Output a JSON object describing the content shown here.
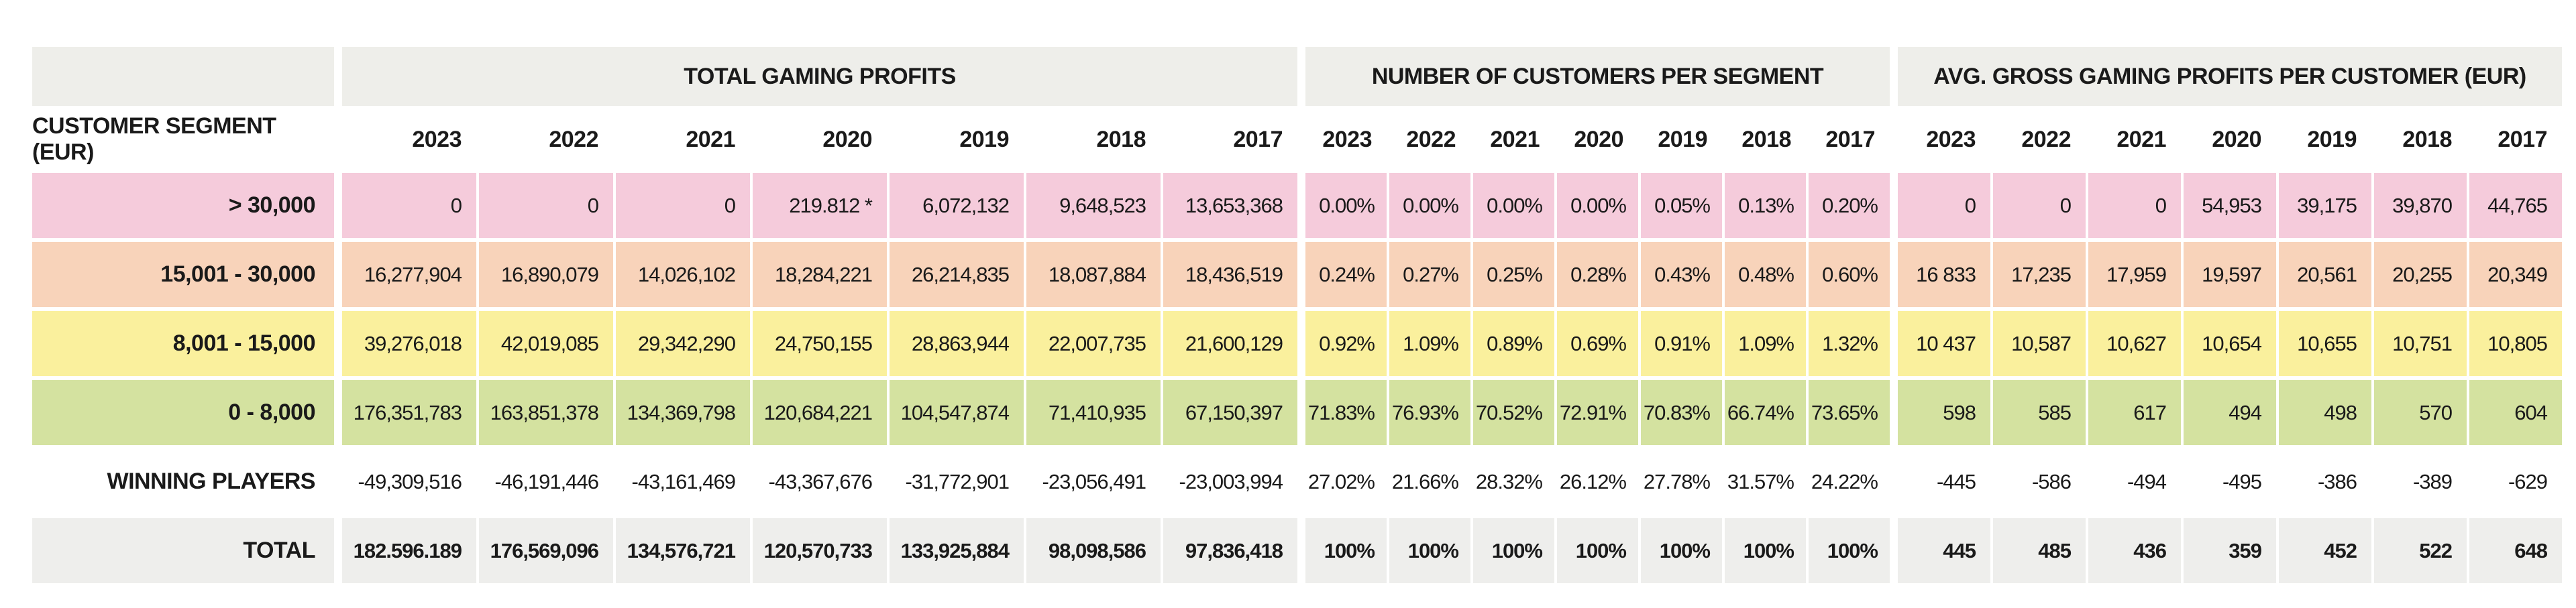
{
  "colors": {
    "header_box_bg": "#eeeeea",
    "row_pink": "#f5cbdb",
    "row_peach": "#f8d3ba",
    "row_yellow": "#faf09d",
    "row_green": "#d4e2a0",
    "row_white": "#ffffff",
    "row_total_gray": "#eeeeec",
    "text": "#1a1a1a"
  },
  "table": {
    "label_column_header": "CUSTOMER SEGMENT (EUR)",
    "sections": [
      {
        "key": "total-gaming-profits",
        "title": "TOTAL GAMING PROFITS",
        "years": [
          "2023",
          "2022",
          "2021",
          "2020",
          "2019",
          "2018",
          "2017"
        ]
      },
      {
        "key": "customers-per-segment",
        "title": "NUMBER OF CUSTOMERS PER SEGMENT",
        "years": [
          "2023",
          "2022",
          "2021",
          "2020",
          "2019",
          "2018",
          "2017"
        ]
      },
      {
        "key": "avg-gross-profits-per-customer",
        "title": "AVG. GROSS GAMING PROFITS PER CUSTOMER (EUR)",
        "years": [
          "2023",
          "2022",
          "2021",
          "2020",
          "2019",
          "2018",
          "2017"
        ]
      }
    ],
    "rows": [
      {
        "key": "over-30000",
        "label": "> 30,000",
        "color": "#f5cbdb",
        "emphasis": false,
        "gaming_profits": [
          "0",
          "0",
          "0",
          "219.812 *",
          "6,072,132",
          "9,648,523",
          "13,653,368"
        ],
        "customers_pct": [
          "0.00%",
          "0.00%",
          "0.00%",
          "0.00%",
          "0.05%",
          "0.13%",
          "0.20%"
        ],
        "avg_profits": [
          "0",
          "0",
          "0",
          "54,953",
          "39,175",
          "39,870",
          "44,765"
        ]
      },
      {
        "key": "15001-30000",
        "label": "15,001 - 30,000",
        "color": "#f8d3ba",
        "emphasis": false,
        "gaming_profits": [
          "16,277,904",
          "16,890,079",
          "14,026,102",
          "18,284,221",
          "26,214,835",
          "18,087,884",
          "18,436,519"
        ],
        "customers_pct": [
          "0.24%",
          "0.27%",
          "0.25%",
          "0.28%",
          "0.43%",
          "0.48%",
          "0.60%"
        ],
        "avg_profits": [
          "16 833",
          "17,235",
          "17,959",
          "19,597",
          "20,561",
          "20,255",
          "20,349"
        ]
      },
      {
        "key": "8001-15000",
        "label": "8,001 - 15,000",
        "color": "#faf09d",
        "emphasis": false,
        "gaming_profits": [
          "39,276,018",
          "42,019,085",
          "29,342,290",
          "24,750,155",
          "28,863,944",
          "22,007,735",
          "21,600,129"
        ],
        "customers_pct": [
          "0.92%",
          "1.09%",
          "0.89%",
          "0.69%",
          "0.91%",
          "1.09%",
          "1.32%"
        ],
        "avg_profits": [
          "10 437",
          "10,587",
          "10,627",
          "10,654",
          "10,655",
          "10,751",
          "10,805"
        ]
      },
      {
        "key": "0-8000",
        "label": "0 - 8,000",
        "color": "#d4e2a0",
        "emphasis": false,
        "gaming_profits": [
          "176,351,783",
          "163,851,378",
          "134,369,798",
          "120,684,221",
          "104,547,874",
          "71,410,935",
          "67,150,397"
        ],
        "customers_pct": [
          "71.83%",
          "76.93%",
          "70.52%",
          "72.91%",
          "70.83%",
          "66.74%",
          "73.65%"
        ],
        "avg_profits": [
          "598",
          "585",
          "617",
          "494",
          "498",
          "570",
          "604"
        ]
      },
      {
        "key": "winning-players",
        "label": "WINNING PLAYERS",
        "color": "#ffffff",
        "emphasis": false,
        "gaming_profits": [
          "-49,309,516",
          "-46,191,446",
          "-43,161,469",
          "-43,367,676",
          "-31,772,901",
          "-23,056,491",
          "-23,003,994"
        ],
        "customers_pct": [
          "27.02%",
          "21.66%",
          "28.32%",
          "26.12%",
          "27.78%",
          "31.57%",
          "24.22%"
        ],
        "avg_profits": [
          "-445",
          "-586",
          "-494",
          "-495",
          "-386",
          "-389",
          "-629"
        ]
      },
      {
        "key": "total",
        "label": "TOTAL",
        "color": "#eeeeec",
        "emphasis": true,
        "gaming_profits": [
          "182.596.189",
          "176,569,096",
          "134,576,721",
          "120,570,733",
          "133,925,884",
          "98,098,586",
          "97,836,418"
        ],
        "customers_pct": [
          "100%",
          "100%",
          "100%",
          "100%",
          "100%",
          "100%",
          "100%"
        ],
        "avg_profits": [
          "445",
          "485",
          "436",
          "359",
          "452",
          "522",
          "648"
        ]
      }
    ]
  }
}
